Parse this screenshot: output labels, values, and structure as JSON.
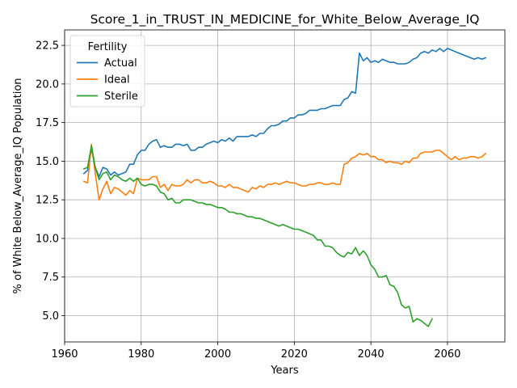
{
  "chart_data": {
    "type": "line",
    "title": "Score_1_in_TRUST_IN_MEDICINE_for_White_Below_Average_IQ",
    "xlabel": "Years",
    "ylabel": "% of White Below_Average_IQ Population",
    "xlim": [
      1960,
      2075
    ],
    "ylim": [
      3.3,
      23.5
    ],
    "xticks": [
      1960,
      1980,
      2000,
      2020,
      2040,
      2060
    ],
    "xtick_labels": [
      "1960",
      "1980",
      "2000",
      "2020",
      "2040",
      "2060"
    ],
    "yticks": [
      5.0,
      7.5,
      10.0,
      12.5,
      15.0,
      17.5,
      20.0,
      22.5
    ],
    "ytick_labels": [
      "5.0",
      "7.5",
      "10.0",
      "12.5",
      "15.0",
      "17.5",
      "20.0",
      "22.5"
    ],
    "grid": true,
    "legend": {
      "title": "Fertility",
      "position": "upper-left"
    },
    "series": [
      {
        "name": "Actual",
        "color": "#1f77b4",
        "x": [
          1965,
          1966,
          1967,
          1968,
          1969,
          1970,
          1971,
          1972,
          1973,
          1974,
          1975,
          1976,
          1977,
          1978,
          1979,
          1980,
          1981,
          1982,
          1983,
          1984,
          1985,
          1986,
          1987,
          1988,
          1989,
          1990,
          1991,
          1992,
          1993,
          1994,
          1995,
          1996,
          1997,
          1998,
          1999,
          2000,
          2001,
          2002,
          2003,
          2004,
          2005,
          2006,
          2007,
          2008,
          2009,
          2010,
          2011,
          2012,
          2013,
          2014,
          2015,
          2016,
          2017,
          2018,
          2019,
          2020,
          2021,
          2022,
          2023,
          2024,
          2025,
          2026,
          2027,
          2028,
          2029,
          2030,
          2031,
          2032,
          2033,
          2034,
          2035,
          2036,
          2037,
          2038,
          2039,
          2040,
          2041,
          2042,
          2043,
          2044,
          2045,
          2046,
          2047,
          2048,
          2049,
          2050,
          2051,
          2052,
          2053,
          2054,
          2055,
          2056,
          2057,
          2058,
          2059,
          2060,
          2061,
          2062,
          2063,
          2064,
          2065,
          2066,
          2067,
          2068,
          2069,
          2070
        ],
        "y": [
          14.2,
          14.4,
          15.8,
          14.6,
          14.0,
          14.6,
          14.5,
          14.1,
          14.3,
          14.1,
          14.2,
          14.3,
          14.8,
          14.8,
          15.4,
          15.7,
          15.7,
          16.1,
          16.3,
          16.4,
          15.9,
          16.0,
          15.9,
          15.9,
          16.1,
          16.1,
          16.0,
          16.1,
          15.7,
          15.7,
          15.9,
          15.9,
          16.1,
          16.2,
          16.3,
          16.2,
          16.4,
          16.3,
          16.5,
          16.3,
          16.6,
          16.6,
          16.6,
          16.6,
          16.7,
          16.6,
          16.8,
          16.8,
          17.1,
          17.3,
          17.3,
          17.4,
          17.6,
          17.6,
          17.8,
          17.8,
          18.0,
          18.0,
          18.1,
          18.3,
          18.3,
          18.3,
          18.4,
          18.4,
          18.5,
          18.6,
          18.6,
          18.6,
          19.0,
          19.1,
          19.5,
          19.4,
          22.0,
          21.5,
          21.7,
          21.4,
          21.5,
          21.4,
          21.6,
          21.5,
          21.4,
          21.4,
          21.3,
          21.3,
          21.3,
          21.4,
          21.6,
          21.7,
          22.0,
          22.1,
          22.0,
          22.2,
          22.1,
          22.3,
          22.1,
          22.3,
          22.2,
          22.1,
          22.0,
          21.9,
          21.8,
          21.7,
          21.6,
          21.7,
          21.6,
          21.7
        ]
      },
      {
        "name": "Ideal",
        "color": "#ff7f0e",
        "x": [
          1965,
          1966,
          1967,
          1968,
          1969,
          1970,
          1971,
          1972,
          1973,
          1974,
          1975,
          1976,
          1977,
          1978,
          1979,
          1980,
          1981,
          1982,
          1983,
          1984,
          1985,
          1986,
          1987,
          1988,
          1989,
          1990,
          1991,
          1992,
          1993,
          1994,
          1995,
          1996,
          1997,
          1998,
          1999,
          2000,
          2001,
          2002,
          2003,
          2004,
          2005,
          2006,
          2007,
          2008,
          2009,
          2010,
          2011,
          2012,
          2013,
          2014,
          2015,
          2016,
          2017,
          2018,
          2019,
          2020,
          2021,
          2022,
          2023,
          2024,
          2025,
          2026,
          2027,
          2028,
          2029,
          2030,
          2031,
          2032,
          2033,
          2034,
          2035,
          2036,
          2037,
          2038,
          2039,
          2040,
          2041,
          2042,
          2043,
          2044,
          2045,
          2046,
          2047,
          2048,
          2049,
          2050,
          2051,
          2052,
          2053,
          2054,
          2055,
          2056,
          2057,
          2058,
          2059,
          2060,
          2061,
          2062,
          2063,
          2064,
          2065,
          2066,
          2067,
          2068,
          2069,
          2070
        ],
        "y": [
          13.7,
          13.6,
          16.1,
          14.2,
          12.5,
          13.2,
          13.7,
          12.9,
          13.3,
          13.2,
          13.0,
          12.8,
          13.1,
          12.9,
          13.9,
          13.8,
          13.8,
          13.8,
          14.0,
          14.0,
          13.3,
          13.5,
          13.1,
          13.5,
          13.4,
          13.4,
          13.5,
          13.8,
          13.6,
          13.8,
          13.8,
          13.6,
          13.6,
          13.7,
          13.6,
          13.4,
          13.4,
          13.3,
          13.5,
          13.3,
          13.3,
          13.2,
          13.1,
          13.0,
          13.3,
          13.2,
          13.4,
          13.3,
          13.5,
          13.5,
          13.6,
          13.5,
          13.6,
          13.7,
          13.6,
          13.6,
          13.5,
          13.4,
          13.4,
          13.5,
          13.5,
          13.6,
          13.6,
          13.5,
          13.5,
          13.6,
          13.5,
          13.5,
          14.8,
          14.9,
          15.2,
          15.3,
          15.5,
          15.4,
          15.5,
          15.3,
          15.3,
          15.1,
          15.1,
          14.9,
          15.0,
          14.9,
          14.9,
          14.8,
          15.0,
          14.9,
          15.2,
          15.2,
          15.5,
          15.6,
          15.6,
          15.6,
          15.7,
          15.7,
          15.5,
          15.3,
          15.1,
          15.3,
          15.1,
          15.2,
          15.2,
          15.3,
          15.3,
          15.2,
          15.3,
          15.5
        ]
      },
      {
        "name": "Sterile",
        "color": "#2ca02c",
        "x": [
          1965,
          1966,
          1967,
          1968,
          1969,
          1970,
          1971,
          1972,
          1973,
          1974,
          1975,
          1976,
          1977,
          1978,
          1979,
          1980,
          1981,
          1982,
          1983,
          1984,
          1985,
          1986,
          1987,
          1988,
          1989,
          1990,
          1991,
          1992,
          1993,
          1994,
          1995,
          1996,
          1997,
          1998,
          1999,
          2000,
          2001,
          2002,
          2003,
          2004,
          2005,
          2006,
          2007,
          2008,
          2009,
          2010,
          2011,
          2012,
          2013,
          2014,
          2015,
          2016,
          2017,
          2018,
          2019,
          2020,
          2021,
          2022,
          2023,
          2024,
          2025,
          2026,
          2027,
          2028,
          2029,
          2030,
          2031,
          2032,
          2033,
          2034,
          2035,
          2036,
          2037,
          2038,
          2039,
          2040,
          2041,
          2042,
          2043,
          2044,
          2045,
          2046,
          2047,
          2048,
          2049,
          2050,
          2051,
          2052,
          2053,
          2054,
          2055,
          2056
        ],
        "y": [
          14.5,
          14.6,
          16.0,
          14.6,
          13.8,
          14.2,
          14.3,
          13.8,
          14.1,
          14.0,
          13.8,
          13.7,
          13.9,
          13.7,
          13.9,
          13.5,
          13.4,
          13.5,
          13.5,
          13.4,
          13.0,
          12.9,
          12.5,
          12.6,
          12.3,
          12.3,
          12.5,
          12.5,
          12.5,
          12.4,
          12.3,
          12.3,
          12.2,
          12.2,
          12.1,
          12.0,
          12.0,
          11.9,
          11.7,
          11.7,
          11.6,
          11.6,
          11.5,
          11.4,
          11.4,
          11.3,
          11.3,
          11.2,
          11.1,
          11.0,
          10.9,
          10.8,
          10.9,
          10.8,
          10.7,
          10.6,
          10.6,
          10.5,
          10.4,
          10.3,
          10.2,
          9.9,
          9.9,
          9.5,
          9.5,
          9.4,
          9.1,
          8.9,
          8.8,
          9.1,
          9.0,
          9.4,
          8.9,
          9.2,
          8.9,
          8.3,
          8.0,
          7.5,
          7.5,
          7.6,
          7.0,
          6.9,
          6.5,
          5.7,
          5.5,
          5.6,
          4.6,
          4.8,
          4.7,
          4.5,
          4.3,
          4.8
        ]
      }
    ]
  }
}
